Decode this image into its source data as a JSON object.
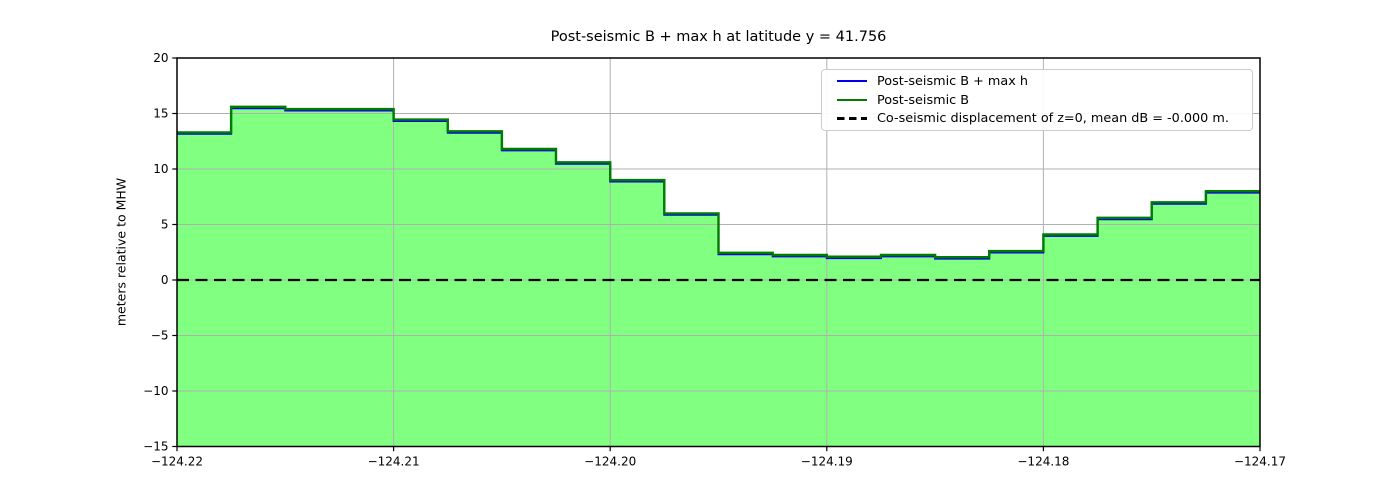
{
  "chart_data": {
    "type": "area",
    "title": "Post-seismic B + max h at latitude y = 41.756",
    "xlabel": "",
    "ylabel": "meters relative to MHW",
    "xlim": [
      -124.22,
      -124.17
    ],
    "ylim": [
      -15,
      20
    ],
    "xticks": [
      -124.22,
      -124.21,
      -124.2,
      -124.19,
      -124.18,
      -124.17
    ],
    "xtick_labels": [
      "−124.22",
      "−124.21",
      "−124.20",
      "−124.19",
      "−124.18",
      "−124.17"
    ],
    "yticks": [
      20,
      15,
      10,
      5,
      0,
      -5,
      -10,
      -15
    ],
    "ytick_labels": [
      "20",
      "15",
      "10",
      "5",
      "0",
      "−5",
      "−10",
      "−15"
    ],
    "grid": true,
    "grid_color": "#b0b0b0",
    "background_color": "#ffffff",
    "step_edges": [
      -124.22,
      -124.2175,
      -124.215,
      -124.2125,
      -124.21,
      -124.2075,
      -124.205,
      -124.2025,
      -124.2,
      -124.1975,
      -124.195,
      -124.1925,
      -124.19,
      -124.1875,
      -124.185,
      -124.1825,
      -124.18,
      -124.1775,
      -124.175,
      -124.1725,
      -124.17
    ],
    "series": [
      {
        "name": "Post-seismic B + max h",
        "type": "step",
        "color": "#0000ee",
        "values": [
          13.3,
          15.6,
          15.4,
          15.4,
          14.45,
          13.4,
          11.8,
          10.6,
          9.0,
          6.0,
          2.45,
          2.25,
          2.1,
          2.25,
          2.05,
          2.6,
          4.1,
          5.6,
          7.0,
          8.0
        ]
      },
      {
        "name": "Post-seismic B",
        "type": "step",
        "color": "#007c00",
        "fill_color": "#80ff80",
        "values": [
          13.3,
          15.6,
          15.4,
          15.4,
          14.45,
          13.4,
          11.8,
          10.6,
          9.0,
          6.0,
          2.45,
          2.25,
          2.1,
          2.25,
          2.05,
          2.6,
          4.1,
          5.6,
          7.0,
          8.0
        ]
      },
      {
        "name": "Co-seismic displacement of z=0, mean dB = -0.000 m.",
        "type": "hline",
        "color": "#000000",
        "style": "dashed",
        "y": 0
      }
    ],
    "legend": {
      "position": "upper right",
      "entries": [
        {
          "label": "Post-seismic B + max h",
          "color": "#0000ee",
          "style": "solid"
        },
        {
          "label": "Post-seismic B",
          "color": "#007c00",
          "style": "solid"
        },
        {
          "label": "Co-seismic displacement of z=0, mean dB = -0.000 m.",
          "color": "#000000",
          "style": "dashed"
        }
      ]
    }
  }
}
